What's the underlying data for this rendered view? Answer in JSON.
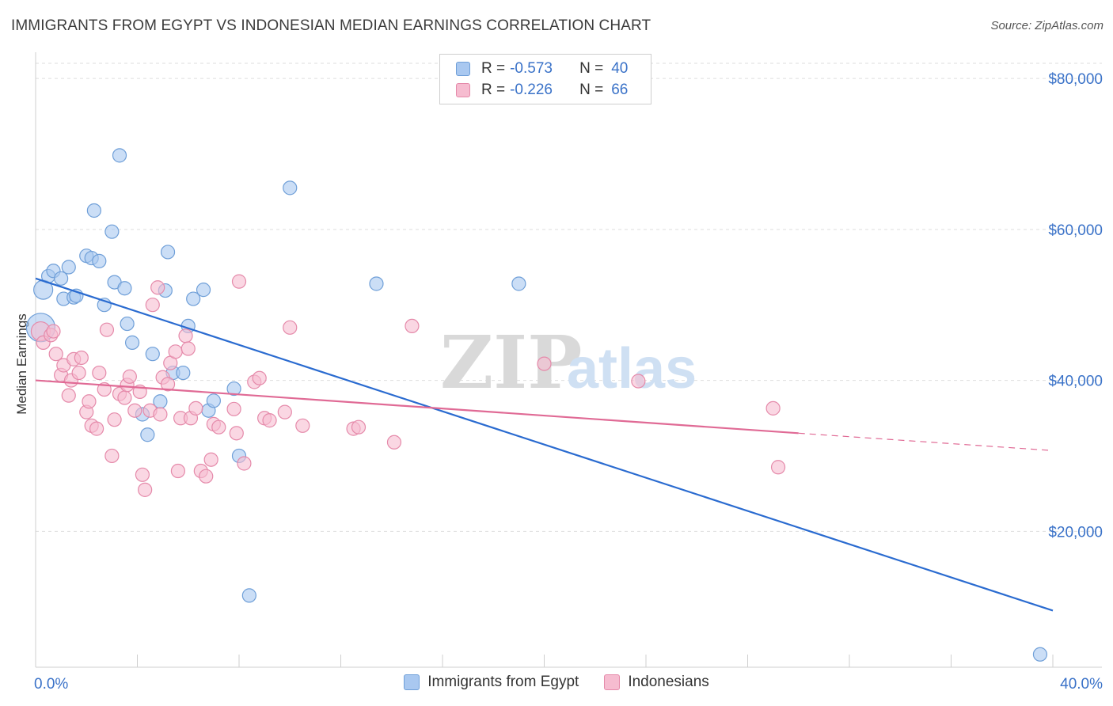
{
  "title": "IMMIGRANTS FROM EGYPT VS INDONESIAN MEDIAN EARNINGS CORRELATION CHART",
  "source": "Source: ZipAtlas.com",
  "watermark": {
    "zip": "ZIP",
    "atlas": "atlas"
  },
  "legend": {
    "r_label": "R =",
    "n_label": "N =",
    "entries": [
      {
        "r": "-0.573",
        "n": "40"
      },
      {
        "r": "-0.226",
        "n": "66"
      }
    ]
  },
  "colors": {
    "blue_fill": "#a9c8f0",
    "blue_stroke": "#6f9fd8",
    "blue_line": "#2a6bd0",
    "pink_fill": "#f6bcd0",
    "pink_stroke": "#e58aaa",
    "pink_line": "#e06a95",
    "axis_label": "#3a72c8"
  },
  "chart_data": {
    "type": "scatter",
    "title": "IMMIGRANTS FROM EGYPT VS INDONESIAN MEDIAN EARNINGS CORRELATION CHART",
    "xlabel": "",
    "ylabel": "Median Earnings",
    "xlim": [
      0,
      40
    ],
    "ylim": [
      2000,
      82000
    ],
    "x_tick_labels": [
      "0.0%",
      "40.0%"
    ],
    "y_ticks": [
      20000,
      40000,
      60000,
      80000
    ],
    "y_tick_labels": [
      "$20,000",
      "$40,000",
      "$60,000",
      "$80,000"
    ],
    "grid": true,
    "legend_position": "bottom",
    "series": [
      {
        "name": "Immigrants from Egypt",
        "color": "#6f9fd8",
        "points": [
          [
            0.2,
            47000,
            3
          ],
          [
            0.3,
            52000,
            2
          ],
          [
            0.5,
            53800,
            1
          ],
          [
            0.7,
            54500,
            1
          ],
          [
            1.0,
            53500,
            1
          ],
          [
            1.1,
            50800,
            1
          ],
          [
            1.3,
            55000,
            1
          ],
          [
            1.5,
            51000,
            1
          ],
          [
            1.6,
            51200,
            1
          ],
          [
            2.0,
            56500,
            1
          ],
          [
            2.3,
            62500,
            1
          ],
          [
            2.2,
            56200,
            1
          ],
          [
            2.5,
            55800,
            1
          ],
          [
            2.7,
            50000,
            1
          ],
          [
            3.0,
            59700,
            1
          ],
          [
            3.1,
            53000,
            1
          ],
          [
            3.3,
            69800,
            1
          ],
          [
            3.5,
            52200,
            1
          ],
          [
            3.6,
            47500,
            1
          ],
          [
            3.8,
            45000,
            1
          ],
          [
            4.2,
            35500,
            1
          ],
          [
            4.4,
            32800,
            1
          ],
          [
            4.6,
            43500,
            1
          ],
          [
            4.9,
            37200,
            1
          ],
          [
            5.1,
            51900,
            1
          ],
          [
            5.2,
            57000,
            1
          ],
          [
            5.4,
            41000,
            1
          ],
          [
            5.8,
            41000,
            1
          ],
          [
            6.0,
            47200,
            1
          ],
          [
            6.2,
            50800,
            1
          ],
          [
            6.6,
            52000,
            1
          ],
          [
            6.8,
            36000,
            1
          ],
          [
            7.0,
            37300,
            1
          ],
          [
            7.8,
            38900,
            1
          ],
          [
            8.0,
            30000,
            1
          ],
          [
            8.4,
            11500,
            1
          ],
          [
            10.0,
            65500,
            1
          ],
          [
            13.4,
            52800,
            1
          ],
          [
            19.0,
            52800,
            1
          ],
          [
            39.5,
            3700,
            1
          ]
        ],
        "trend": {
          "x": [
            0,
            40
          ],
          "y": [
            53500,
            9500
          ]
        }
      },
      {
        "name": "Indonesians",
        "color": "#e58aaa",
        "points": [
          [
            0.2,
            46500,
            2
          ],
          [
            0.3,
            45000,
            1
          ],
          [
            0.6,
            46000,
            1
          ],
          [
            0.7,
            46500,
            1
          ],
          [
            0.8,
            43500,
            1
          ],
          [
            1.0,
            40700,
            1
          ],
          [
            1.1,
            42000,
            1
          ],
          [
            1.3,
            38000,
            1
          ],
          [
            1.4,
            40000,
            1
          ],
          [
            1.5,
            42800,
            1
          ],
          [
            1.7,
            41000,
            1
          ],
          [
            1.8,
            43000,
            1
          ],
          [
            2.0,
            35800,
            1
          ],
          [
            2.1,
            37200,
            1
          ],
          [
            2.2,
            34000,
            1
          ],
          [
            2.4,
            33600,
            1
          ],
          [
            2.5,
            41000,
            1
          ],
          [
            2.7,
            38800,
            1
          ],
          [
            2.8,
            46700,
            1
          ],
          [
            3.0,
            30000,
            1
          ],
          [
            3.1,
            34800,
            1
          ],
          [
            3.3,
            38200,
            1
          ],
          [
            3.5,
            37700,
            1
          ],
          [
            3.6,
            39400,
            1
          ],
          [
            3.7,
            40500,
            1
          ],
          [
            3.9,
            36000,
            1
          ],
          [
            4.1,
            38500,
            1
          ],
          [
            4.2,
            27500,
            1
          ],
          [
            4.3,
            25500,
            1
          ],
          [
            4.5,
            36000,
            1
          ],
          [
            4.6,
            50000,
            1
          ],
          [
            4.8,
            52300,
            1
          ],
          [
            4.9,
            35500,
            1
          ],
          [
            5.0,
            40400,
            1
          ],
          [
            5.2,
            39500,
            1
          ],
          [
            5.3,
            42300,
            1
          ],
          [
            5.5,
            43800,
            1
          ],
          [
            5.6,
            28000,
            1
          ],
          [
            5.7,
            35000,
            1
          ],
          [
            5.9,
            45900,
            1
          ],
          [
            6.0,
            44200,
            1
          ],
          [
            6.1,
            35000,
            1
          ],
          [
            6.3,
            36300,
            1
          ],
          [
            6.5,
            28000,
            1
          ],
          [
            6.7,
            27300,
            1
          ],
          [
            6.9,
            29500,
            1
          ],
          [
            7.0,
            34200,
            1
          ],
          [
            7.2,
            33800,
            1
          ],
          [
            7.8,
            36200,
            1
          ],
          [
            8.2,
            29000,
            1
          ],
          [
            7.9,
            33000,
            1
          ],
          [
            8.0,
            53100,
            1
          ],
          [
            8.6,
            39800,
            1
          ],
          [
            8.8,
            40300,
            1
          ],
          [
            9.0,
            35000,
            1
          ],
          [
            9.2,
            34700,
            1
          ],
          [
            9.8,
            35800,
            1
          ],
          [
            10.0,
            47000,
            1
          ],
          [
            10.5,
            34000,
            1
          ],
          [
            12.5,
            33600,
            1
          ],
          [
            12.7,
            33800,
            1
          ],
          [
            14.1,
            31800,
            1
          ],
          [
            14.8,
            47200,
            1
          ],
          [
            20.0,
            42200,
            1
          ],
          [
            23.7,
            39900,
            1
          ],
          [
            29.0,
            36300,
            1
          ],
          [
            29.2,
            28500,
            1
          ]
        ],
        "trend": {
          "x": [
            0,
            30
          ],
          "y": [
            40000,
            33000
          ]
        },
        "trend_dashed": {
          "x": [
            30,
            40
          ],
          "y": [
            33000,
            30700
          ]
        }
      }
    ]
  }
}
